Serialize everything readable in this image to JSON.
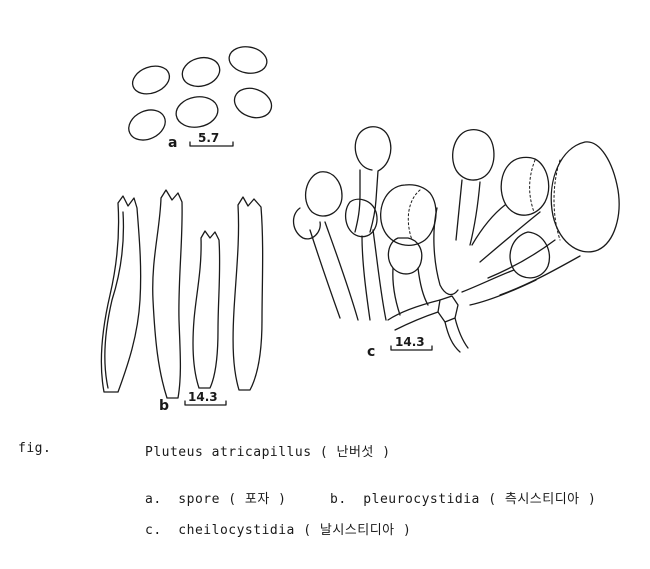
{
  "figure": {
    "panel_a": {
      "letter": "a",
      "scale": "5.7"
    },
    "panel_b": {
      "letter": "b",
      "scale": "14.3"
    },
    "panel_c": {
      "letter": "c",
      "scale": "14.3"
    }
  },
  "caption": {
    "fig_label": "fig.",
    "title": "Pluteus atricapillus ( 난버섯 )",
    "line_a": "a.  spore ( 포자 )",
    "line_b": "b.  pleurocystidia ( 측시스티디아 )",
    "line_c": "c.  cheilocystidia ( 날시스티디아 )"
  }
}
